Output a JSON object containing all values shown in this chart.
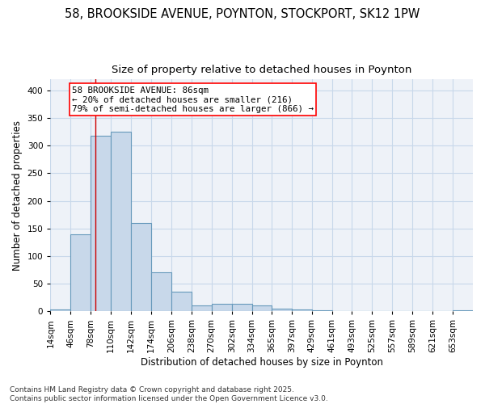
{
  "title_line1": "58, BROOKSIDE AVENUE, POYNTON, STOCKPORT, SK12 1PW",
  "title_line2": "Size of property relative to detached houses in Poynton",
  "xlabel": "Distribution of detached houses by size in Poynton",
  "ylabel": "Number of detached properties",
  "bar_edges": [
    14,
    46,
    78,
    110,
    142,
    174,
    206,
    238,
    270,
    302,
    334,
    365,
    397,
    429,
    461,
    493,
    525,
    557,
    589,
    621,
    653,
    685
  ],
  "bar_heights": [
    3,
    140,
    318,
    325,
    160,
    70,
    35,
    10,
    13,
    13,
    10,
    5,
    4,
    2,
    1,
    1,
    1,
    1,
    1,
    1,
    2
  ],
  "bar_color": "#c8d8ea",
  "bar_edgecolor": "#6699bb",
  "bar_linewidth": 0.8,
  "grid_color": "#c8d8ea",
  "background_color": "#eef2f8",
  "red_line_x": 86,
  "red_line_color": "#cc0000",
  "annotation_text": "58 BROOKSIDE AVENUE: 86sqm\n← 20% of detached houses are smaller (216)\n79% of semi-detached houses are larger (866) →",
  "ylim": [
    0,
    420
  ],
  "yticks": [
    0,
    50,
    100,
    150,
    200,
    250,
    300,
    350,
    400
  ],
  "title_fontsize": 10.5,
  "subtitle_fontsize": 9.5,
  "xlabel_fontsize": 8.5,
  "ylabel_fontsize": 8.5,
  "tick_fontsize": 7.5,
  "ann_fontsize": 7.8,
  "footer_text": "Contains HM Land Registry data © Crown copyright and database right 2025.\nContains public sector information licensed under the Open Government Licence v3.0.",
  "footer_fontsize": 6.5
}
